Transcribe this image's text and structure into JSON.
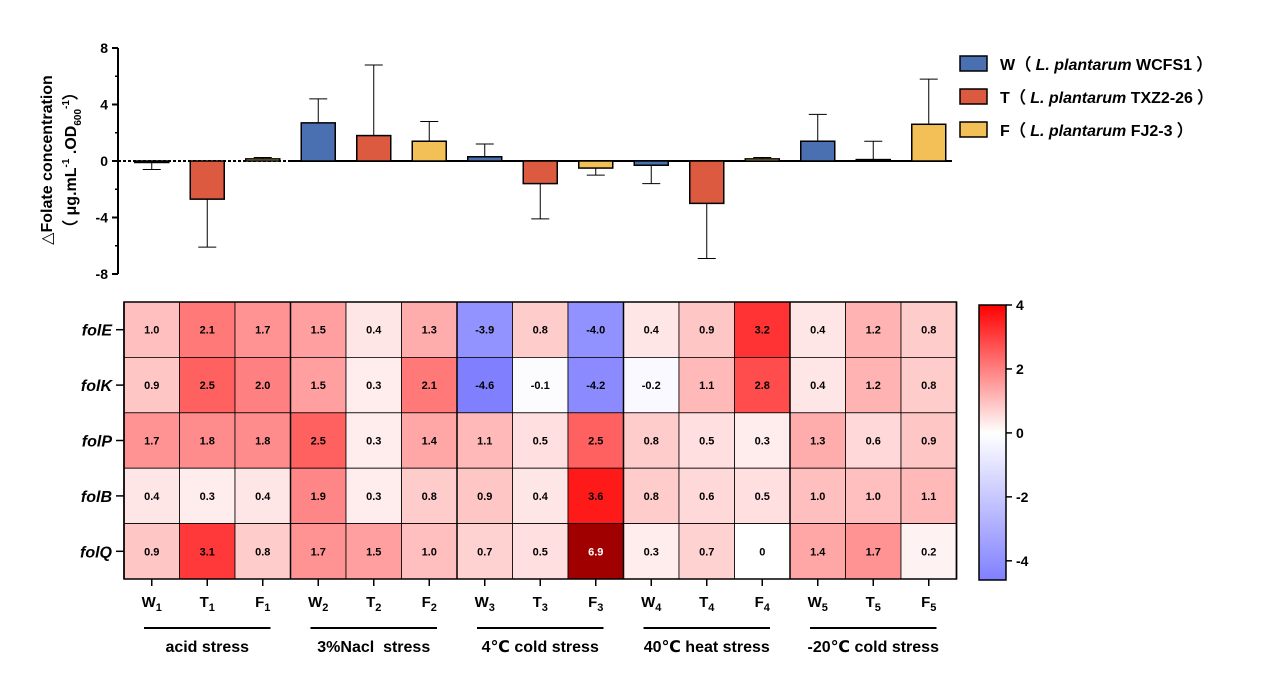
{
  "chart_data": [
    {
      "type": "bar",
      "ylabel_line1": "△Folate concentration",
      "ylabel_line2_prefix": "（ μg.mL",
      "ylabel_line2_sup1": "-1",
      "ylabel_line2_mid": " .OD",
      "ylabel_line2_sub": "600",
      "ylabel_line2_sup2": "-1",
      "ylabel_line2_suffix": "）",
      "ylim": [
        -8,
        8
      ],
      "yticks": [
        8,
        4,
        0,
        -4,
        -8
      ],
      "series_legend": [
        {
          "key": "W",
          "letter": "W",
          "open": "（ ",
          "species": "L. plantarum",
          "strain": " WCFS1",
          "close": " ）",
          "color": "#4a70b1"
        },
        {
          "key": "T",
          "letter": "T",
          "open": "（ ",
          "species": "L. plantarum",
          "strain": " TXZ2-26",
          "close": " ）",
          "color": "#dc5a40"
        },
        {
          "key": "F",
          "letter": "F",
          "open": "（ ",
          "species": "L. plantarum",
          "strain": " FJ2-3",
          "close": " ）",
          "color": "#f2c057"
        }
      ],
      "bars": [
        {
          "series": "W",
          "value": -0.1,
          "error": 0.5
        },
        {
          "series": "T",
          "value": -2.7,
          "error": 3.4
        },
        {
          "series": "F",
          "value": 0.15,
          "error": 0.1
        },
        {
          "series": "W",
          "value": 2.7,
          "error": 1.7
        },
        {
          "series": "T",
          "value": 1.8,
          "error": 5.0
        },
        {
          "series": "F",
          "value": 1.4,
          "error": 1.4
        },
        {
          "series": "W",
          "value": 0.3,
          "error": 0.9
        },
        {
          "series": "T",
          "value": -1.6,
          "error": 2.5
        },
        {
          "series": "F",
          "value": -0.5,
          "error": 0.5
        },
        {
          "series": "W",
          "value": -0.3,
          "error": 1.3
        },
        {
          "series": "T",
          "value": -3.0,
          "error": 3.9
        },
        {
          "series": "F",
          "value": 0.15,
          "error": 0.1
        },
        {
          "series": "W",
          "value": 1.4,
          "error": 1.9
        },
        {
          "series": "T",
          "value": 0.1,
          "error": 1.3
        },
        {
          "series": "F",
          "value": 2.6,
          "error": 3.2
        }
      ]
    },
    {
      "type": "heatmap",
      "rows": [
        "folE",
        "folK",
        "folP",
        "folB",
        "folQ"
      ],
      "columns": [
        {
          "base": "W",
          "sub": "1"
        },
        {
          "base": "T",
          "sub": "1"
        },
        {
          "base": "F",
          "sub": "1"
        },
        {
          "base": "W",
          "sub": "2"
        },
        {
          "base": "T",
          "sub": "2"
        },
        {
          "base": "F",
          "sub": "2"
        },
        {
          "base": "W",
          "sub": "3"
        },
        {
          "base": "T",
          "sub": "3"
        },
        {
          "base": "F",
          "sub": "3"
        },
        {
          "base": "W",
          "sub": "4"
        },
        {
          "base": "T",
          "sub": "4"
        },
        {
          "base": "F",
          "sub": "4"
        },
        {
          "base": "W",
          "sub": "5"
        },
        {
          "base": "T",
          "sub": "5"
        },
        {
          "base": "F",
          "sub": "5"
        }
      ],
      "values": [
        [
          "1.0",
          "2.1",
          "1.7",
          "1.5",
          "0.4",
          "1.3",
          "-3.9",
          "0.8",
          "-4.0",
          "0.4",
          "0.9",
          "3.2",
          "0.4",
          "1.2",
          "0.8"
        ],
        [
          "0.9",
          "2.5",
          "2.0",
          "1.5",
          "0.3",
          "2.1",
          "-4.6",
          "-0.1",
          "-4.2",
          "-0.2",
          "1.1",
          "2.8",
          "0.4",
          "1.2",
          "0.8"
        ],
        [
          "1.7",
          "1.8",
          "1.8",
          "2.5",
          "0.3",
          "1.4",
          "1.1",
          "0.5",
          "2.5",
          "0.8",
          "0.5",
          "0.3",
          "1.3",
          "0.6",
          "0.9"
        ],
        [
          "0.4",
          "0.3",
          "0.4",
          "1.9",
          "0.3",
          "0.8",
          "0.9",
          "0.4",
          "3.6",
          "0.8",
          "0.6",
          "0.5",
          "1.0",
          "1.0",
          "1.1"
        ],
        [
          "0.9",
          "3.1",
          "0.8",
          "1.7",
          "1.5",
          "1.0",
          "0.7",
          "0.5",
          "6.9",
          "0.3",
          "0.7",
          "0",
          "1.4",
          "1.7",
          "0.2"
        ]
      ],
      "groups": [
        "acid stress",
        "3%Nacl  stress",
        "4℃ cold stress",
        "40℃ heat stress",
        "-20℃ cold stress"
      ],
      "colorbar_ticks": [
        4,
        2,
        0,
        -2,
        -4
      ],
      "color_range": [
        -4.6,
        4
      ],
      "color_low": "#8080ff",
      "color_mid": "#ffffff",
      "color_high": "#ff0000",
      "color_over": "#a00000"
    }
  ]
}
